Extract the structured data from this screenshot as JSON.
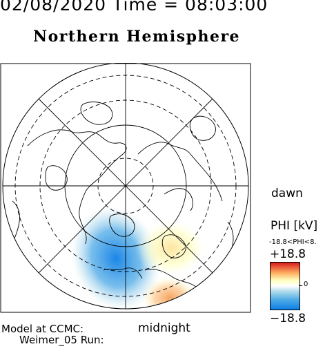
{
  "header": {
    "date_time": "02/08/2020 Time = 08:03:00",
    "title": "Northern Hemisphere"
  },
  "map": {
    "dawn_label": "dawn",
    "midnight_label": "midnight",
    "credit_line1": "Model at CCMC:",
    "credit_line2": "Weimer_05 Run:"
  },
  "colorbar": {
    "title": "PHI [kV]",
    "range_text": "-18.8<PHI<8.",
    "max_label": "+18.8",
    "zero_label": "0",
    "min_label": "−18.8",
    "colors": {
      "positive": "#d7191c",
      "neutral": "#ffffff",
      "negative": "#0f7fe6"
    }
  }
}
